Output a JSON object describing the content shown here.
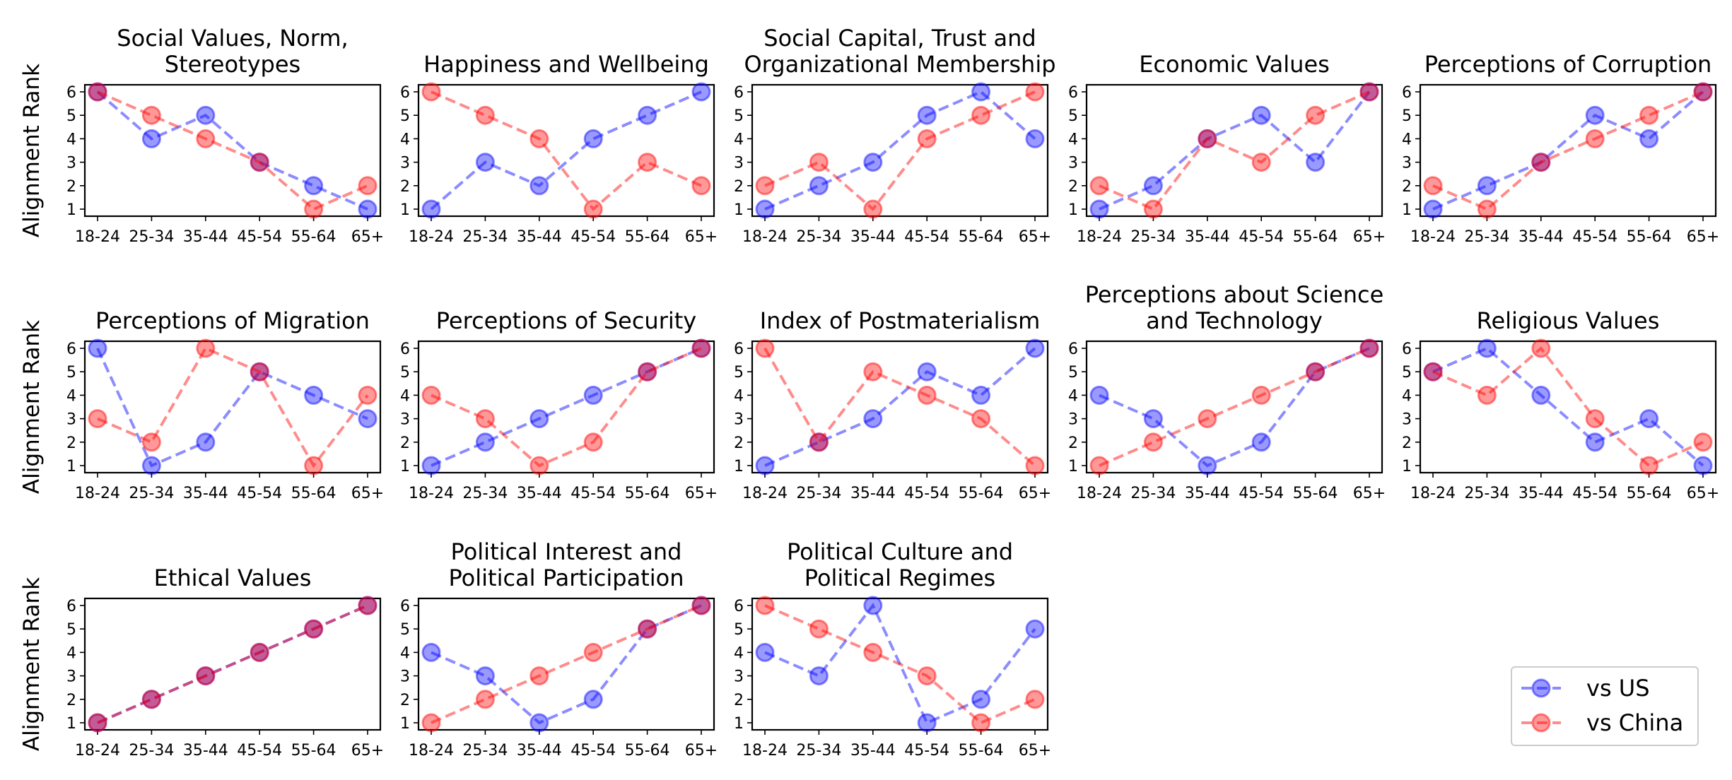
{
  "chart_data": {
    "type": "line",
    "ylabel": "Alignment Rank",
    "categories": [
      "18-24",
      "25-34",
      "35-44",
      "45-54",
      "55-64",
      "65+"
    ],
    "yticks": [
      "1",
      "2",
      "3",
      "4",
      "5",
      "6"
    ],
    "ylim": [
      1,
      6
    ],
    "series_styles": [
      {
        "name": "vs US",
        "color": "#0000ff"
      },
      {
        "name": "vs China",
        "color": "#ff0000"
      }
    ],
    "legend": {
      "position": "lower-right",
      "entries": [
        "vs US",
        "vs China"
      ]
    },
    "panels": [
      {
        "title": [
          "Social Values, Norm,",
          "Stereotypes"
        ],
        "series": [
          {
            "name": "vs US",
            "values": [
              6,
              4,
              5,
              3,
              2,
              1
            ]
          },
          {
            "name": "vs China",
            "values": [
              6,
              5,
              4,
              3,
              1,
              2
            ]
          }
        ]
      },
      {
        "title": [
          "Happiness and Wellbeing"
        ],
        "series": [
          {
            "name": "vs US",
            "values": [
              1,
              3,
              2,
              4,
              5,
              6
            ]
          },
          {
            "name": "vs China",
            "values": [
              6,
              5,
              4,
              1,
              3,
              2
            ]
          }
        ]
      },
      {
        "title": [
          "Social Capital, Trust and",
          "Organizational Membership"
        ],
        "series": [
          {
            "name": "vs US",
            "values": [
              1,
              2,
              3,
              5,
              6,
              4
            ]
          },
          {
            "name": "vs China",
            "values": [
              2,
              3,
              1,
              4,
              5,
              6
            ]
          }
        ]
      },
      {
        "title": [
          "Economic Values"
        ],
        "series": [
          {
            "name": "vs US",
            "values": [
              1,
              2,
              4,
              5,
              3,
              6
            ]
          },
          {
            "name": "vs China",
            "values": [
              2,
              1,
              4,
              3,
              5,
              6
            ]
          }
        ]
      },
      {
        "title": [
          "Perceptions of Corruption"
        ],
        "series": [
          {
            "name": "vs US",
            "values": [
              1,
              2,
              3,
              5,
              4,
              6
            ]
          },
          {
            "name": "vs China",
            "values": [
              2,
              1,
              3,
              4,
              5,
              6
            ]
          }
        ]
      },
      {
        "title": [
          "Perceptions of Migration"
        ],
        "series": [
          {
            "name": "vs US",
            "values": [
              6,
              1,
              2,
              5,
              4,
              3
            ]
          },
          {
            "name": "vs China",
            "values": [
              3,
              2,
              6,
              5,
              1,
              4
            ]
          }
        ]
      },
      {
        "title": [
          "Perceptions of Security"
        ],
        "series": [
          {
            "name": "vs US",
            "values": [
              1,
              2,
              3,
              4,
              5,
              6
            ]
          },
          {
            "name": "vs China",
            "values": [
              4,
              3,
              1,
              2,
              5,
              6
            ]
          }
        ]
      },
      {
        "title": [
          "Index of Postmaterialism"
        ],
        "series": [
          {
            "name": "vs US",
            "values": [
              1,
              2,
              3,
              5,
              4,
              6
            ]
          },
          {
            "name": "vs China",
            "values": [
              6,
              2,
              5,
              4,
              3,
              1
            ]
          }
        ]
      },
      {
        "title": [
          "Perceptions about Science",
          "and Technology"
        ],
        "series": [
          {
            "name": "vs US",
            "values": [
              4,
              3,
              1,
              2,
              5,
              6
            ]
          },
          {
            "name": "vs China",
            "values": [
              1,
              2,
              3,
              4,
              5,
              6
            ]
          }
        ]
      },
      {
        "title": [
          "Religious Values"
        ],
        "series": [
          {
            "name": "vs US",
            "values": [
              5,
              6,
              4,
              2,
              3,
              1
            ]
          },
          {
            "name": "vs China",
            "values": [
              5,
              4,
              6,
              3,
              1,
              2
            ]
          }
        ]
      },
      {
        "title": [
          "Ethical Values"
        ],
        "series": [
          {
            "name": "vs US",
            "values": [
              1,
              2,
              3,
              4,
              5,
              6
            ]
          },
          {
            "name": "vs China",
            "values": [
              1,
              2,
              3,
              4,
              5,
              6
            ]
          }
        ]
      },
      {
        "title": [
          "Political Interest and",
          "Political Participation"
        ],
        "series": [
          {
            "name": "vs US",
            "values": [
              4,
              3,
              1,
              2,
              5,
              6
            ]
          },
          {
            "name": "vs China",
            "values": [
              1,
              2,
              3,
              4,
              5,
              6
            ]
          }
        ]
      },
      {
        "title": [
          "Political Culture and",
          "Political Regimes"
        ],
        "series": [
          {
            "name": "vs US",
            "values": [
              4,
              3,
              6,
              1,
              2,
              5
            ]
          },
          {
            "name": "vs China",
            "values": [
              6,
              5,
              4,
              3,
              1,
              2
            ]
          }
        ]
      }
    ]
  }
}
